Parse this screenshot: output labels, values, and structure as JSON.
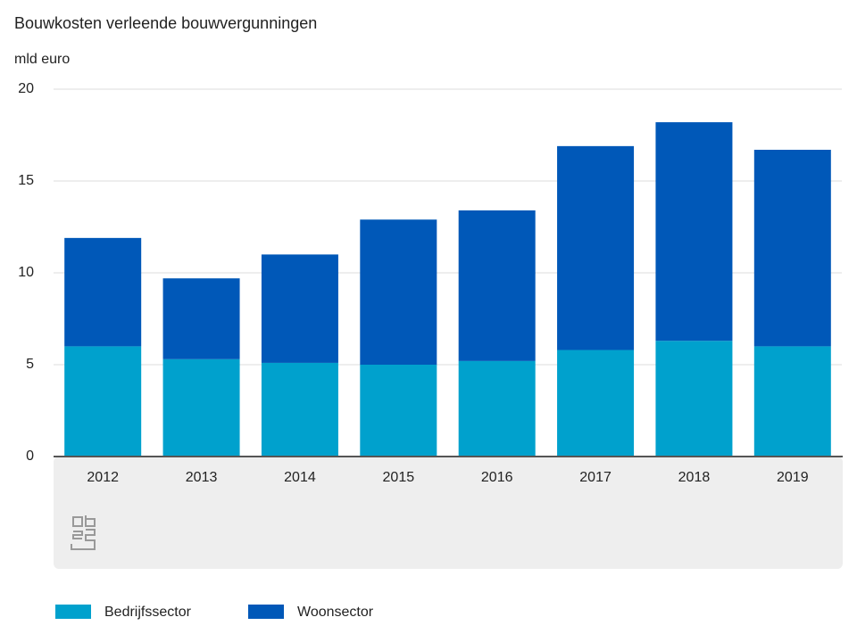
{
  "chart_data": {
    "type": "stacked_bar",
    "title": "Bouwkosten verleende bouwvergunningen",
    "y_label": "mld euro",
    "categories": [
      "2012",
      "2013",
      "2014",
      "2015",
      "2016",
      "2017",
      "2018",
      "2019"
    ],
    "series": [
      {
        "name": "Bedrijfssector",
        "color": "#00a1cd",
        "values": [
          6.0,
          5.3,
          5.1,
          5.0,
          5.2,
          5.8,
          6.3,
          6.0
        ]
      },
      {
        "name": "Woonsector",
        "color": "#0058b8",
        "values": [
          5.9,
          4.4,
          5.9,
          7.9,
          8.2,
          11.1,
          11.9,
          10.7
        ]
      }
    ],
    "ylim": [
      0,
      20
    ],
    "yticks": [
      0,
      5,
      10,
      15,
      20
    ],
    "grid": true
  }
}
